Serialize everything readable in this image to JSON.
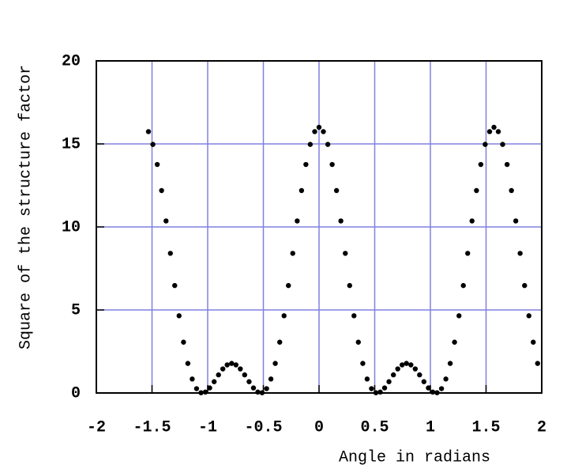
{
  "chart_data": {
    "type": "scatter",
    "x_label": "Angle in radians",
    "y_label": "Square of the structure factor",
    "color": "#000000",
    "grid_color": "#8080e0",
    "grid": true,
    "xlim": [
      -2,
      2
    ],
    "xticks": [
      -2,
      -1.5,
      -1,
      -0.5,
      0,
      0.5,
      1,
      1.5,
      2
    ],
    "ylim": [
      0,
      20
    ],
    "yticks": [
      0,
      5,
      10,
      15,
      20
    ],
    "x": [
      -1.532,
      -1.492,
      -1.453,
      -1.414,
      -1.374,
      -1.335,
      -1.296,
      -1.257,
      -1.217,
      -1.178,
      -1.139,
      -1.1,
      -1.06,
      -1.021,
      -0.982,
      -0.942,
      -0.903,
      -0.864,
      -0.825,
      -0.785,
      -0.746,
      -0.707,
      -0.668,
      -0.628,
      -0.589,
      -0.55,
      -0.511,
      -0.471,
      -0.432,
      -0.393,
      -0.353,
      -0.314,
      -0.275,
      -0.236,
      -0.196,
      -0.157,
      -0.118,
      -0.079,
      -0.039,
      0,
      0.039,
      0.079,
      0.118,
      0.157,
      0.196,
      0.236,
      0.275,
      0.314,
      0.353,
      0.393,
      0.432,
      0.471,
      0.511,
      0.55,
      0.589,
      0.628,
      0.668,
      0.707,
      0.746,
      0.785,
      0.825,
      0.864,
      0.903,
      0.942,
      0.982,
      1.021,
      1.06,
      1.1,
      1.139,
      1.178,
      1.217,
      1.257,
      1.296,
      1.335,
      1.374,
      1.414,
      1.453,
      1.492,
      1.532,
      1.571,
      1.61,
      1.649,
      1.689,
      1.728,
      1.767,
      1.806,
      1.846,
      1.885,
      1.924,
      1.963
    ],
    "values": [
      15.74,
      14.97,
      13.76,
      12.19,
      10.36,
      8.41,
      6.47,
      4.65,
      3.06,
      1.78,
      0.84,
      0.26,
      0.015,
      0.055,
      0.305,
      0.68,
      1.09,
      1.45,
      1.69,
      1.78,
      1.69,
      1.45,
      1.09,
      0.68,
      0.305,
      0.055,
      0.015,
      0.26,
      0.84,
      1.78,
      3.06,
      4.65,
      6.47,
      8.41,
      10.36,
      12.19,
      13.76,
      14.97,
      15.74,
      16,
      15.74,
      14.97,
      13.76,
      12.19,
      10.36,
      8.41,
      6.47,
      4.65,
      3.06,
      1.78,
      0.84,
      0.26,
      0.015,
      0.055,
      0.305,
      0.68,
      1.09,
      1.45,
      1.69,
      1.78,
      1.69,
      1.45,
      1.09,
      0.68,
      0.305,
      0.055,
      0.015,
      0.26,
      0.84,
      1.78,
      3.06,
      4.65,
      6.47,
      8.41,
      10.36,
      12.19,
      13.76,
      14.97,
      15.74,
      16,
      15.74,
      14.97,
      13.76,
      12.19,
      10.36,
      8.41,
      6.47,
      4.65,
      3.06,
      1.78
    ]
  }
}
